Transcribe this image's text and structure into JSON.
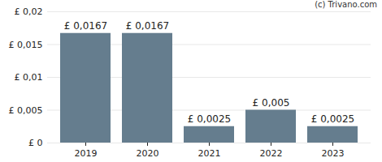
{
  "chart_data": {
    "type": "bar",
    "annotation": "(c) Trivano.com",
    "categories": [
      "2019",
      "2020",
      "2021",
      "2022",
      "2023"
    ],
    "values": [
      0.0167,
      0.0167,
      0.0025,
      0.005,
      0.0025
    ],
    "value_labels": [
      "£ 0,0167",
      "£ 0,0167",
      "£ 0,0025",
      "£ 0,005",
      "£ 0,0025"
    ],
    "data_labels": true,
    "color": "#657d8e",
    "ylim": [
      0,
      0.02
    ],
    "yticks": [
      {
        "value": 0,
        "label": "£ 0"
      },
      {
        "value": 0.005,
        "label": "£ 0,005"
      },
      {
        "value": 0.01,
        "label": "£ 0,01"
      },
      {
        "value": 0.015,
        "label": "£ 0,015"
      },
      {
        "value": 0.02,
        "label": "£ 0,02"
      }
    ],
    "grid": true
  }
}
